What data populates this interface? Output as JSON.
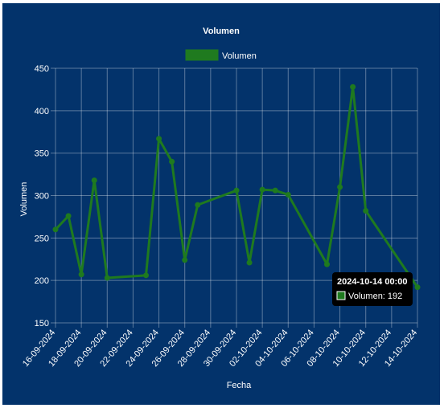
{
  "chart_data": {
    "type": "line",
    "title": "Volumen",
    "xlabel": "Fecha",
    "ylabel": "Volumen",
    "ylim": [
      150,
      450
    ],
    "yticks": [
      150,
      200,
      250,
      300,
      350,
      400,
      450
    ],
    "xlim": [
      "2024-09-16",
      "2024-10-14"
    ],
    "xticks": [
      "16-09-2024",
      "18-09-2024",
      "20-09-2024",
      "22-09-2024",
      "24-09-2024",
      "26-09-2024",
      "28-09-2024",
      "30-09-2024",
      "02-10-2024",
      "04-10-2024",
      "06-10-2024",
      "08-10-2024",
      "10-10-2024",
      "12-10-2024",
      "14-10-2024"
    ],
    "grid": true,
    "legend_position": "top",
    "series": [
      {
        "name": "Volumen",
        "color": "#1f7a1f",
        "points": [
          {
            "x": "2024-09-16",
            "y": 260
          },
          {
            "x": "2024-09-17",
            "y": 276
          },
          {
            "x": "2024-09-18",
            "y": 207
          },
          {
            "x": "2024-09-19",
            "y": 318
          },
          {
            "x": "2024-09-20",
            "y": 203
          },
          {
            "x": "2024-09-23",
            "y": 206
          },
          {
            "x": "2024-09-24",
            "y": 367
          },
          {
            "x": "2024-09-25",
            "y": 340
          },
          {
            "x": "2024-09-26",
            "y": 224
          },
          {
            "x": "2024-09-27",
            "y": 289
          },
          {
            "x": "2024-09-30",
            "y": 306
          },
          {
            "x": "2024-10-01",
            "y": 221
          },
          {
            "x": "2024-10-02",
            "y": 307
          },
          {
            "x": "2024-10-03",
            "y": 306
          },
          {
            "x": "2024-10-04",
            "y": 301
          },
          {
            "x": "2024-10-07",
            "y": 219
          },
          {
            "x": "2024-10-08",
            "y": 310
          },
          {
            "x": "2024-10-09",
            "y": 428
          },
          {
            "x": "2024-10-10",
            "y": 282
          },
          {
            "x": "2024-10-14",
            "y": 192
          }
        ]
      }
    ],
    "tooltip": {
      "title": "2024-10-14 00:00",
      "label": "Volumen: 192"
    }
  }
}
